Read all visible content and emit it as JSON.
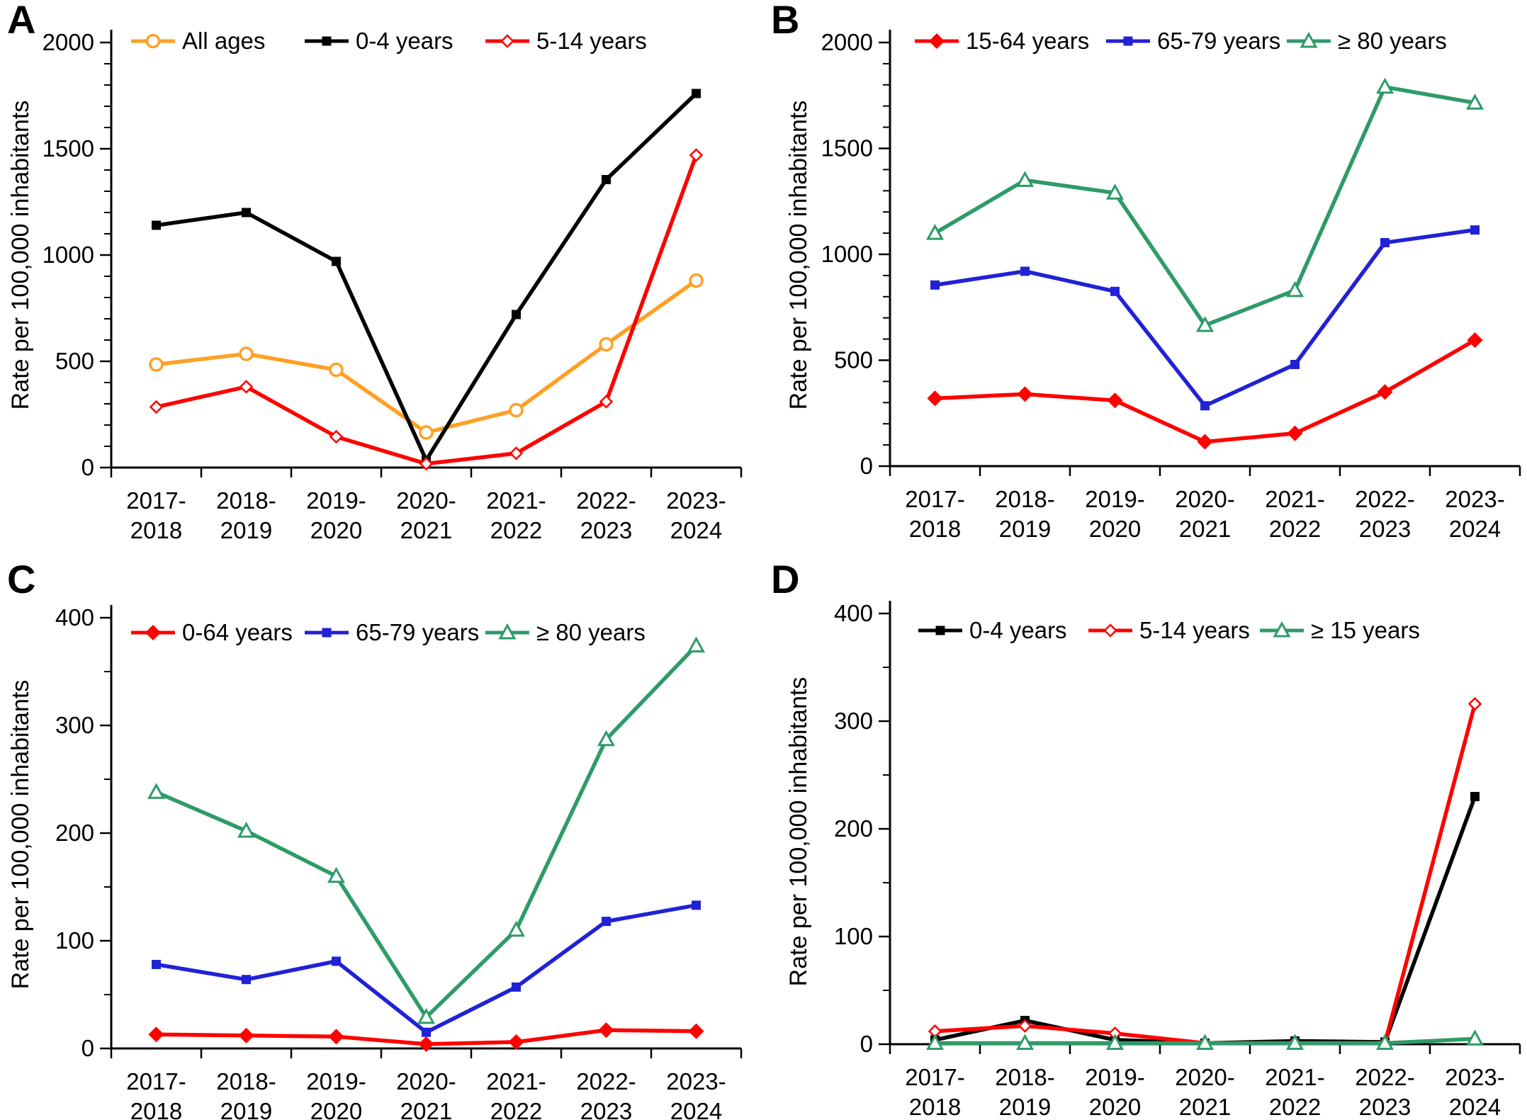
{
  "figure": {
    "background": "#ffffff"
  },
  "chart_data": [
    {
      "panel_letter": "A",
      "type": "line",
      "ylabel": "Rate per 100,000 inhabitants",
      "ylim": [
        0,
        2000
      ],
      "ytick_step": 500,
      "yminor_step": 100,
      "yticks": [
        "0",
        "500",
        "1000",
        "1500",
        "2000"
      ],
      "grid": false,
      "legend_position": "top-inside",
      "categories": [
        [
          "2017-",
          "2018"
        ],
        [
          "2018-",
          "2019"
        ],
        [
          "2019-",
          "2020"
        ],
        [
          "2020-",
          "2021"
        ],
        [
          "2021-",
          "2022"
        ],
        [
          "2022-",
          "2023"
        ],
        [
          "2023-",
          "2024"
        ]
      ],
      "series": [
        {
          "name": "All ages",
          "color": "#FFA024",
          "marker": "circle-open",
          "values": [
            485,
            535,
            460,
            165,
            270,
            580,
            880
          ]
        },
        {
          "name": "0-4 years",
          "color": "#000000",
          "marker": "square-filled",
          "values": [
            1140,
            1200,
            970,
            35,
            720,
            1355,
            1760
          ]
        },
        {
          "name": "5-14 years",
          "color": "#FF0000",
          "marker": "diamond-open",
          "values": [
            285,
            380,
            145,
            18,
            67,
            310,
            1470
          ]
        }
      ]
    },
    {
      "panel_letter": "B",
      "type": "line",
      "ylabel": "Rate per 100,000 inhabitants",
      "ylim": [
        0,
        2000
      ],
      "ytick_step": 500,
      "yminor_step": 100,
      "yticks": [
        "0",
        "500",
        "1000",
        "1500",
        "2000"
      ],
      "grid": false,
      "legend_position": "top-inside",
      "categories": [
        [
          "2017-",
          "2018"
        ],
        [
          "2018-",
          "2019"
        ],
        [
          "2019-",
          "2020"
        ],
        [
          "2020-",
          "2021"
        ],
        [
          "2021-",
          "2022"
        ],
        [
          "2022-",
          "2023"
        ],
        [
          "2023-",
          "2024"
        ]
      ],
      "series": [
        {
          "name": "15-64 years",
          "color": "#FF0000",
          "marker": "diamond-filled",
          "values": [
            320,
            340,
            310,
            115,
            155,
            350,
            595
          ]
        },
        {
          "name": "65-79 years",
          "color": "#2121D6",
          "marker": "square-filled",
          "values": [
            855,
            920,
            825,
            285,
            480,
            1055,
            1115
          ]
        },
        {
          "name": "≥ 80 years",
          "color": "#2E9B68",
          "marker": "triangle-open",
          "values": [
            1100,
            1350,
            1290,
            665,
            830,
            1790,
            1715
          ]
        }
      ]
    },
    {
      "panel_letter": "C",
      "type": "line",
      "ylabel": "Rate per 100,000 inhabitants",
      "ylim": [
        0,
        400
      ],
      "ytick_step": 100,
      "yminor_step": 50,
      "yticks": [
        "0",
        "100",
        "200",
        "300",
        "400"
      ],
      "grid": false,
      "legend_position": "top-inside",
      "categories": [
        [
          "2017-",
          "2018"
        ],
        [
          "2018-",
          "2019"
        ],
        [
          "2019-",
          "2020"
        ],
        [
          "2020-",
          "2021"
        ],
        [
          "2021-",
          "2022"
        ],
        [
          "2022-",
          "2023"
        ],
        [
          "2023-",
          "2024"
        ]
      ],
      "series": [
        {
          "name": "0-64 years",
          "color": "#FF0000",
          "marker": "diamond-filled",
          "values": [
            13,
            12,
            11,
            4,
            6,
            17,
            16
          ]
        },
        {
          "name": "65-79 years",
          "color": "#2121D6",
          "marker": "square-filled",
          "values": [
            78,
            64,
            81,
            15,
            57,
            118,
            133
          ]
        },
        {
          "name": "≥ 80 years",
          "color": "#2E9B68",
          "marker": "triangle-open",
          "values": [
            238,
            202,
            160,
            29,
            110,
            287,
            374
          ]
        }
      ]
    },
    {
      "panel_letter": "D",
      "type": "line",
      "ylabel": "Rate per 100,000 inhabitants",
      "ylim": [
        0,
        400
      ],
      "ytick_step": 100,
      "yminor_step": 50,
      "yticks": [
        "0",
        "100",
        "200",
        "300",
        "400"
      ],
      "grid": false,
      "legend_position": "top-inside",
      "categories": [
        [
          "2017-",
          "2018"
        ],
        [
          "2018-",
          "2019"
        ],
        [
          "2019-",
          "2020"
        ],
        [
          "2020-",
          "2021"
        ],
        [
          "2021-",
          "2022"
        ],
        [
          "2022-",
          "2023"
        ],
        [
          "2023-",
          "2024"
        ]
      ],
      "series": [
        {
          "name": "0-4 years",
          "color": "#000000",
          "marker": "square-filled",
          "values": [
            4,
            22,
            4,
            1,
            3,
            2,
            230
          ]
        },
        {
          "name": "5-14 years",
          "color": "#FF0000",
          "marker": "diamond-open",
          "values": [
            12,
            17,
            10,
            1,
            1,
            1,
            316
          ]
        },
        {
          "name": "≥ 15 years",
          "color": "#2E9B68",
          "marker": "triangle-open",
          "values": [
            1,
            1,
            1,
            1,
            1,
            1,
            5
          ]
        }
      ]
    }
  ]
}
